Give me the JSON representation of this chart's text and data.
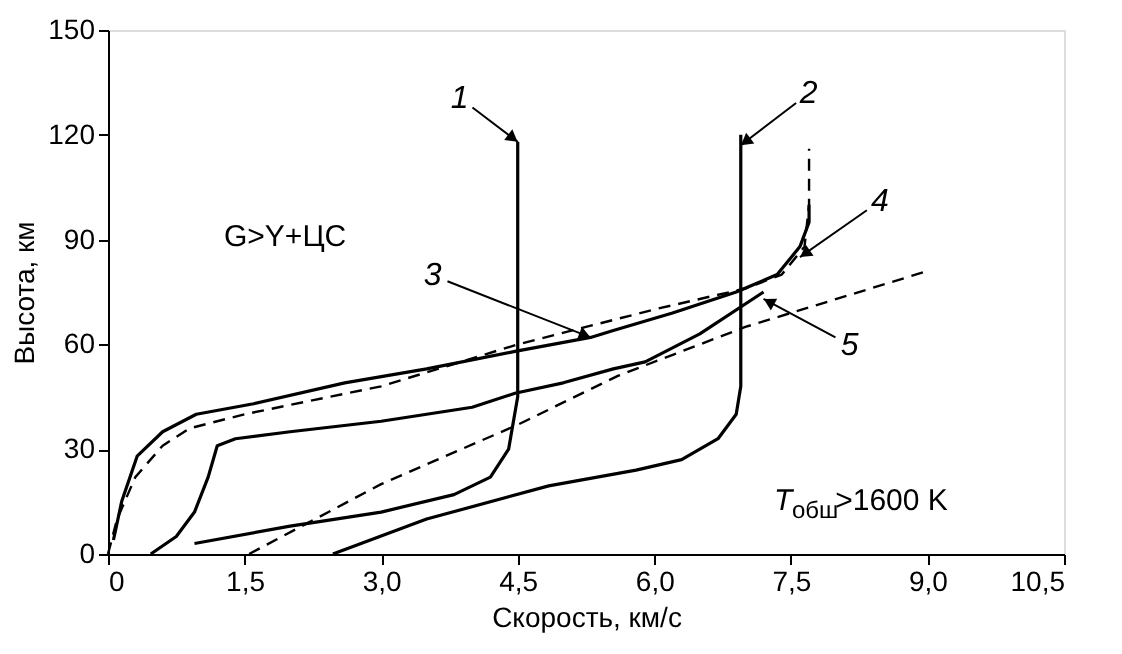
{
  "chart_data": {
    "type": "line",
    "xlabel": "Скорость, км/с",
    "ylabel": "Высота, км",
    "xlim": [
      0,
      10.5
    ],
    "ylim": [
      0,
      150
    ],
    "xticks": [
      0,
      {
        "value": 1.5,
        "label": "1,5"
      },
      {
        "value": 3,
        "label": "3,0"
      },
      {
        "value": 4.5,
        "label": "4,5"
      },
      {
        "value": 6,
        "label": "6,0"
      },
      {
        "value": 7.5,
        "label": "7,5"
      },
      {
        "value": 9,
        "label": "9,0"
      },
      {
        "value": 10.5,
        "label": "10,5"
      }
    ],
    "yticks": [
      0,
      30,
      60,
      90,
      120,
      150
    ],
    "grid": false,
    "legend": false,
    "series": [
      {
        "color": "#000000",
        "line_style": "solid",
        "x": [
          0.95,
          2.0,
          3.0,
          3.8,
          4.2,
          4.4,
          4.5,
          4.5
        ],
        "values": [
          3,
          8,
          12,
          17,
          22,
          30,
          45,
          118
        ]
      },
      {
        "color": "#000000",
        "line_style": "solid",
        "x": [
          2.47,
          3.5,
          4.84,
          5.8,
          6.3,
          6.7,
          6.9,
          6.95,
          6.95
        ],
        "values": [
          0,
          10,
          19.5,
          24,
          27,
          33,
          40,
          48,
          120
        ]
      },
      {
        "color": "#000000",
        "line_style": "solid",
        "x": [
          0.06,
          0.15,
          0.32,
          0.6,
          0.97,
          1.6,
          2.6,
          3.5,
          4.47,
          5.3,
          5.55,
          6.2,
          6.9,
          7.35,
          7.6,
          7.7,
          7.7
        ],
        "values": [
          4,
          15,
          28,
          35,
          40,
          43,
          49,
          53,
          58,
          62,
          64,
          69,
          75,
          80,
          88,
          95,
          100
        ]
      },
      {
        "color": "#000000",
        "line_style": "dashed",
        "x": [
          0.0,
          0.1,
          0.3,
          0.6,
          0.9,
          1.5,
          3.0,
          4.5,
          6.0,
          7.0,
          7.4,
          7.65,
          7.7,
          7.7
        ],
        "values": [
          0,
          10,
          22,
          31,
          36,
          40,
          48,
          60,
          70,
          76,
          80,
          88,
          100,
          116
        ]
      },
      {
        "color": "#000000",
        "line_style": "solid",
        "x": [
          0.47,
          0.75,
          0.95,
          1.1,
          1.2,
          1.4,
          2.0,
          3.0,
          4.0,
          4.47,
          5.0,
          5.55,
          5.9,
          6.5,
          7.2
        ],
        "values": [
          0,
          5,
          12,
          22,
          31,
          33,
          35,
          38,
          42,
          46,
          49,
          53,
          55,
          63,
          75
        ]
      },
      {
        "color": "#000000",
        "line_style": "dashed",
        "x": [
          1.55,
          3.0,
          4.5,
          5.6,
          7.0,
          9.0
        ],
        "values": [
          0,
          20,
          37,
          51,
          65,
          81
        ]
      }
    ],
    "annotations": [
      {
        "text": "1",
        "x": 4.5,
        "y": 118
      },
      {
        "text": "2",
        "x": 6.95,
        "y": 117
      },
      {
        "text": "3",
        "x": 5.3,
        "y": 62
      },
      {
        "text": "4",
        "x": 7.6,
        "y": 85
      },
      {
        "text": "5",
        "x": 7.2,
        "y": 73
      },
      "G>Y+ЦС",
      "T$_{обш}$>1600 K"
    ]
  }
}
